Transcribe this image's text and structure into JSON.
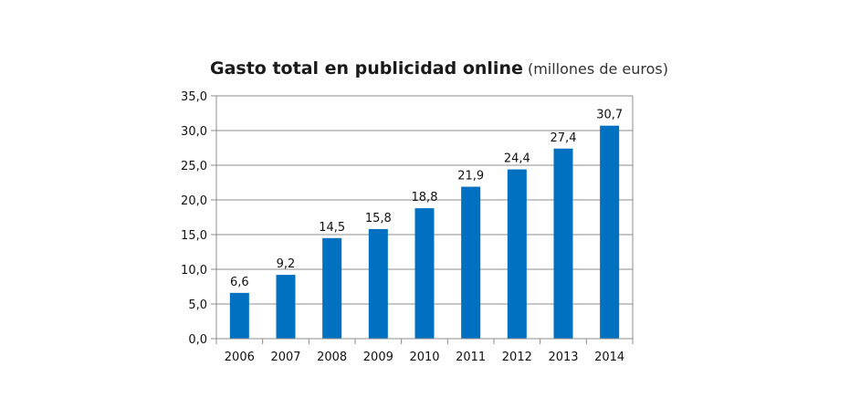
{
  "chart_data": {
    "type": "bar",
    "title": "Gasto total en publicidad online",
    "subtitle": "(millones de euros)",
    "xlabel": "",
    "ylabel": "",
    "categories": [
      "2006",
      "2007",
      "2008",
      "2009",
      "2010",
      "2011",
      "2012",
      "2013",
      "2014"
    ],
    "values": [
      6.6,
      9.2,
      14.5,
      15.8,
      18.8,
      21.9,
      24.4,
      27.4,
      30.7
    ],
    "value_labels": [
      "6,6",
      "9,2",
      "14,5",
      "15,8",
      "18,8",
      "21,9",
      "24,4",
      "27,4",
      "30,7"
    ],
    "y_ticks": [
      0,
      5,
      10,
      15,
      20,
      25,
      30,
      35
    ],
    "y_tick_labels": [
      "0,0",
      "5,0",
      "10,0",
      "15,0",
      "20,0",
      "25,0",
      "30,0",
      "35,0"
    ],
    "ylim": [
      0,
      35
    ],
    "grid": true,
    "legend": "none",
    "bar_color": "#0070C0",
    "grid_color": "#8c8c8c"
  }
}
